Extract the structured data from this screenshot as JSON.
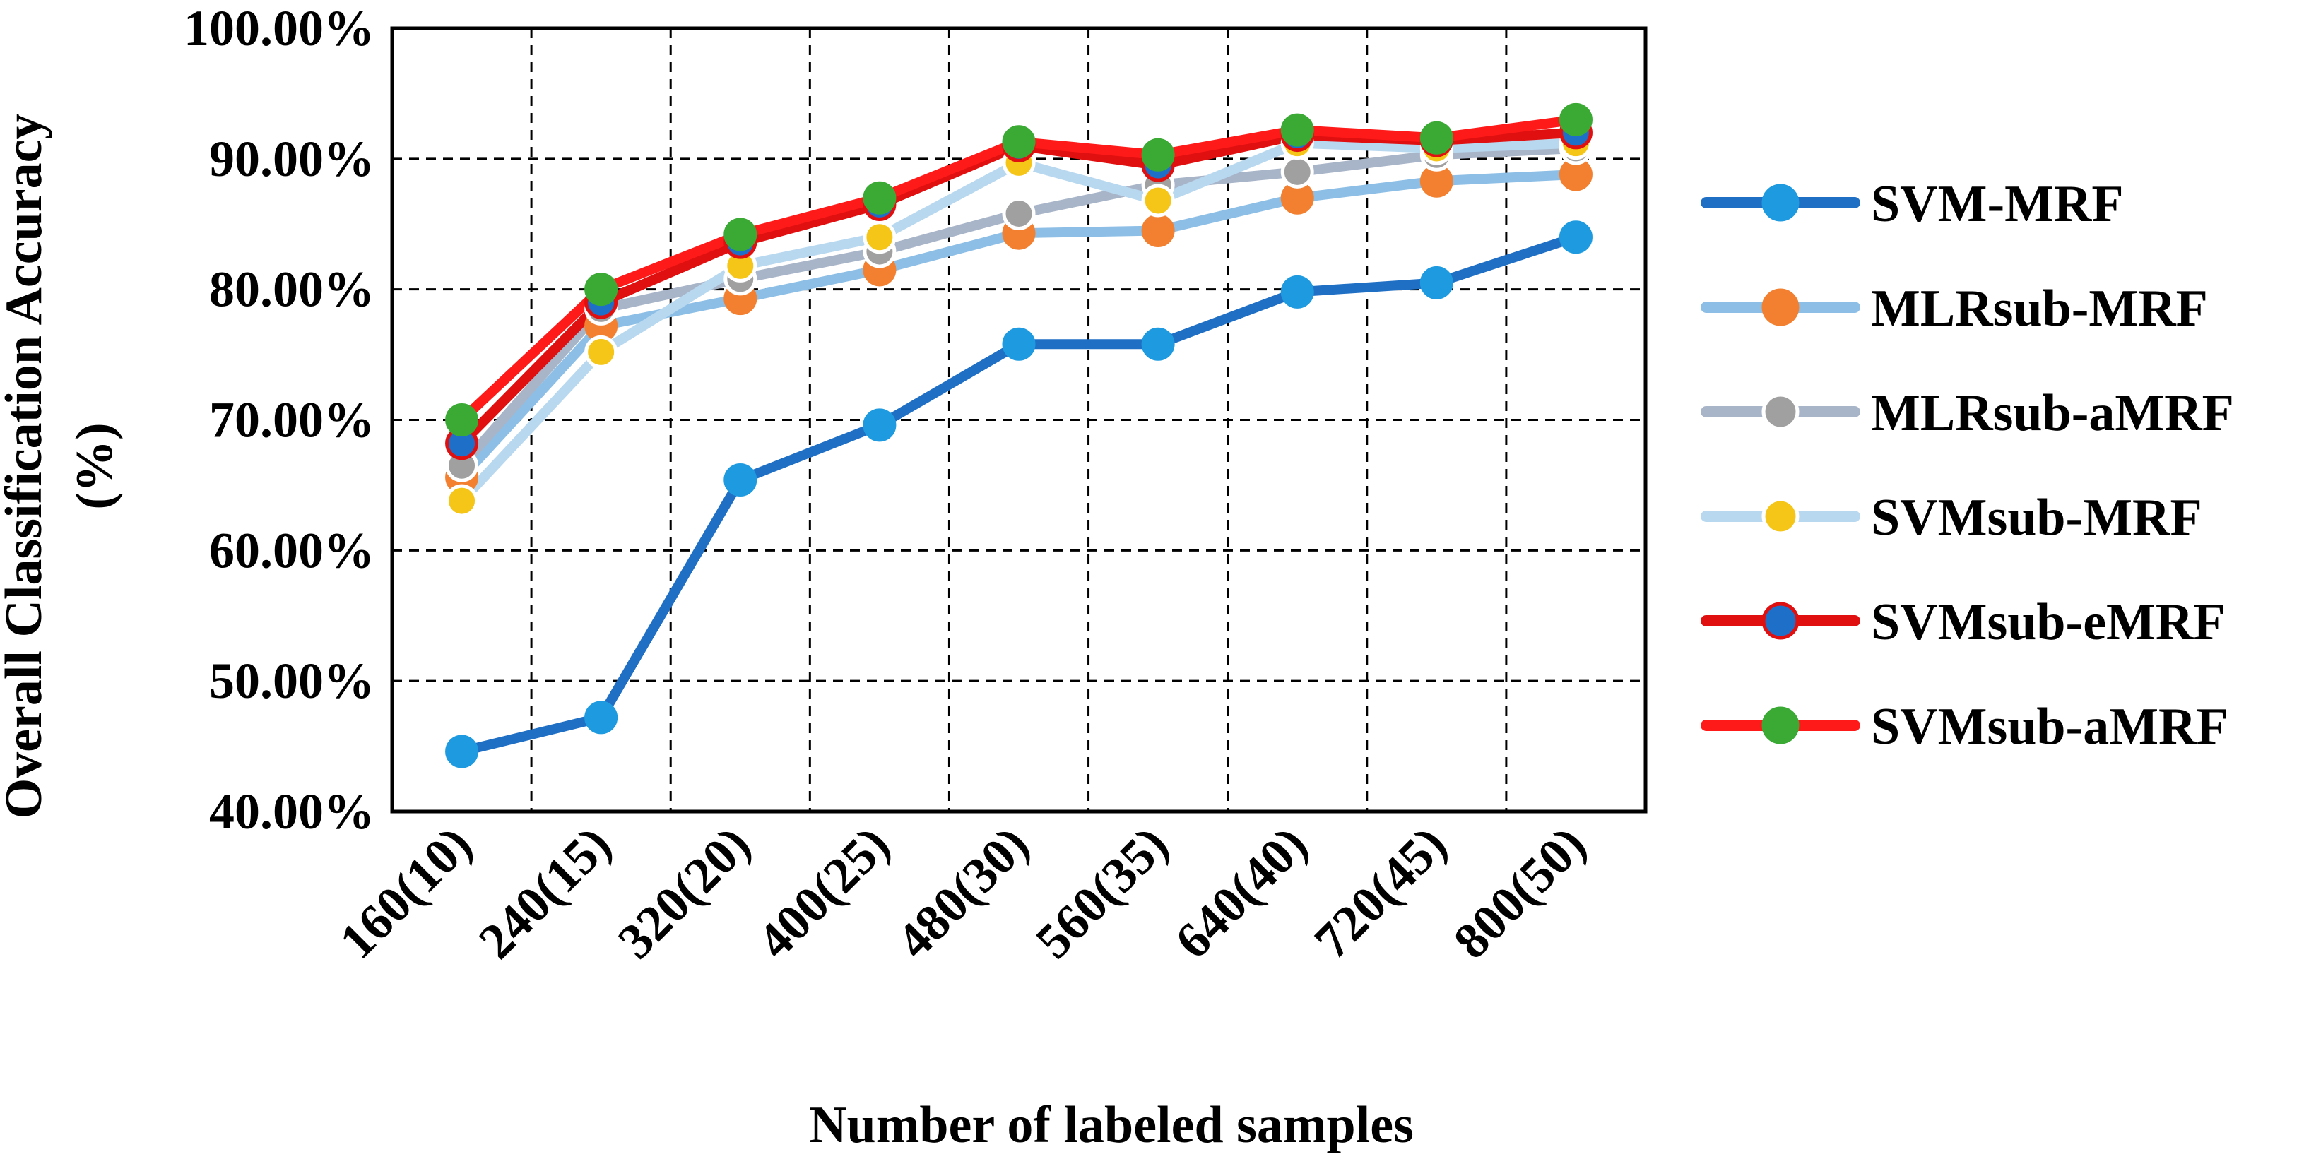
{
  "chart_data": {
    "type": "line",
    "title": "",
    "xlabel": "Number of labeled samples",
    "ylabel": "Overall Classification Accuracy",
    "ylabel_unit": "(%)",
    "categories": [
      "160(10)",
      "240(15)",
      "320(20)",
      "400(25)",
      "480(30)",
      "560(35)",
      "640(40)",
      "720(45)",
      "800(50)"
    ],
    "ylim": [
      40,
      100
    ],
    "y_ticks": [
      40,
      50,
      60,
      70,
      80,
      90,
      100
    ],
    "y_tick_labels": [
      "40.00%",
      "50.00%",
      "60.00%",
      "70.00%",
      "80.00%",
      "90.00%",
      "100.00%"
    ],
    "grid": true,
    "legend_position": "right",
    "series": [
      {
        "name": "SVM-MRF",
        "line_color": "#1f6fc5",
        "marker_color": "#1e9be0",
        "marker_outline": "#1e9be0",
        "values": [
          44.6,
          47.2,
          65.4,
          69.6,
          75.8,
          75.8,
          79.8,
          80.5,
          84.0
        ]
      },
      {
        "name": "MLRsub-MRF",
        "line_color": "#8dbfe6",
        "marker_color": "#f28030",
        "marker_outline": "#f28030",
        "values": [
          65.6,
          77.2,
          79.3,
          81.5,
          84.3,
          84.5,
          87.0,
          88.3,
          88.8
        ]
      },
      {
        "name": "MLRsub-aMRF",
        "line_color": "#a8b4c8",
        "marker_color": "#a0a0a0",
        "marker_outline": "#ffffff",
        "values": [
          66.5,
          78.5,
          80.8,
          82.9,
          85.8,
          88.0,
          89.0,
          90.3,
          90.8
        ]
      },
      {
        "name": "SVMsub-MRF",
        "line_color": "#b8d8f0",
        "marker_color": "#f5c518",
        "marker_outline": "#ffffff",
        "values": [
          63.8,
          75.2,
          81.8,
          84.0,
          89.7,
          86.8,
          91.2,
          90.8,
          91.2
        ]
      },
      {
        "name": "SVMsub-eMRF",
        "line_color": "#e01010",
        "marker_color": "#1e6fc8",
        "marker_outline": "#e01010",
        "values": [
          68.2,
          79.0,
          83.6,
          86.5,
          91.0,
          89.5,
          91.8,
          91.4,
          92.0
        ]
      },
      {
        "name": "SVMsub-aMRF",
        "line_color": "#ff1a1a",
        "marker_color": "#3aaa35",
        "marker_outline": "#3aaa35",
        "values": [
          70.0,
          80.0,
          84.2,
          87.0,
          91.3,
          90.3,
          92.2,
          91.6,
          93.0
        ]
      }
    ]
  }
}
